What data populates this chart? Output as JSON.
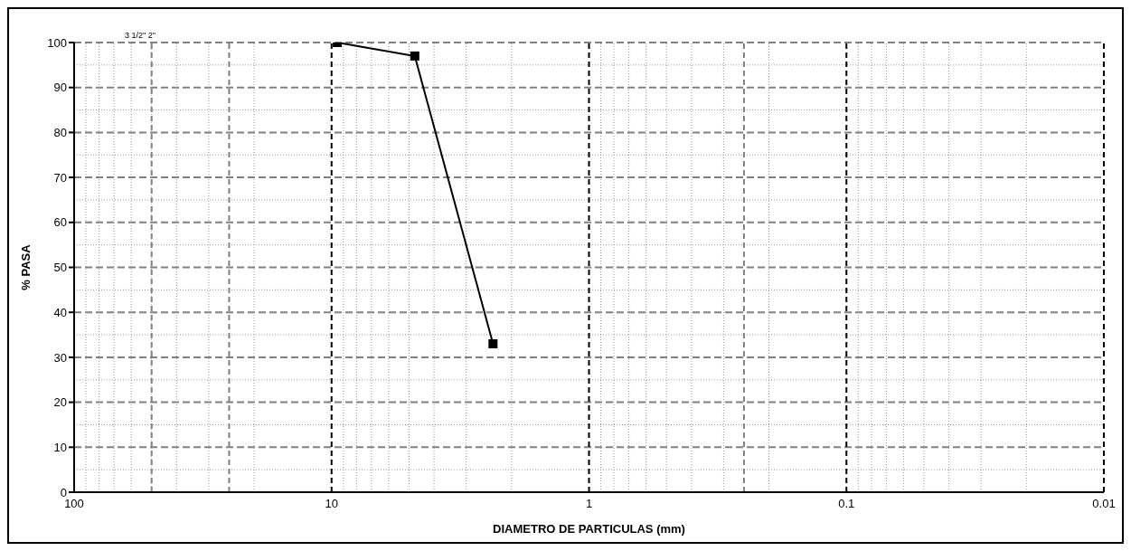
{
  "chart_data": {
    "type": "line",
    "xlabel": "DIAMETRO  DE  PARTICULAS (mm)",
    "ylabel": "% PASA",
    "x": [
      9.5,
      4.75,
      2.36
    ],
    "series": [
      {
        "color": "#000000",
        "values": [
          100,
          97,
          33
        ]
      }
    ],
    "xlim": [
      100,
      0.01
    ],
    "xticks": [
      100,
      10,
      1,
      0.1,
      0.01
    ],
    "ylim": [
      0,
      100
    ],
    "yticks": [
      0,
      10,
      20,
      30,
      40,
      50,
      60,
      70,
      80,
      90,
      100
    ],
    "log": "x",
    "grid": true,
    "marker": "square",
    "line_style": "solid",
    "ref_lines": [
      {
        "axis": "x",
        "value": 50,
        "color": "#808080",
        "line_style": "dashed"
      },
      {
        "axis": "x",
        "value": 25,
        "color": "#808080",
        "line_style": "dashed"
      },
      {
        "axis": "x",
        "value": 0.25,
        "color": "#808080",
        "line_style": "dashed"
      }
    ],
    "annotations": [
      "3 1/2\"  2\""
    ]
  }
}
